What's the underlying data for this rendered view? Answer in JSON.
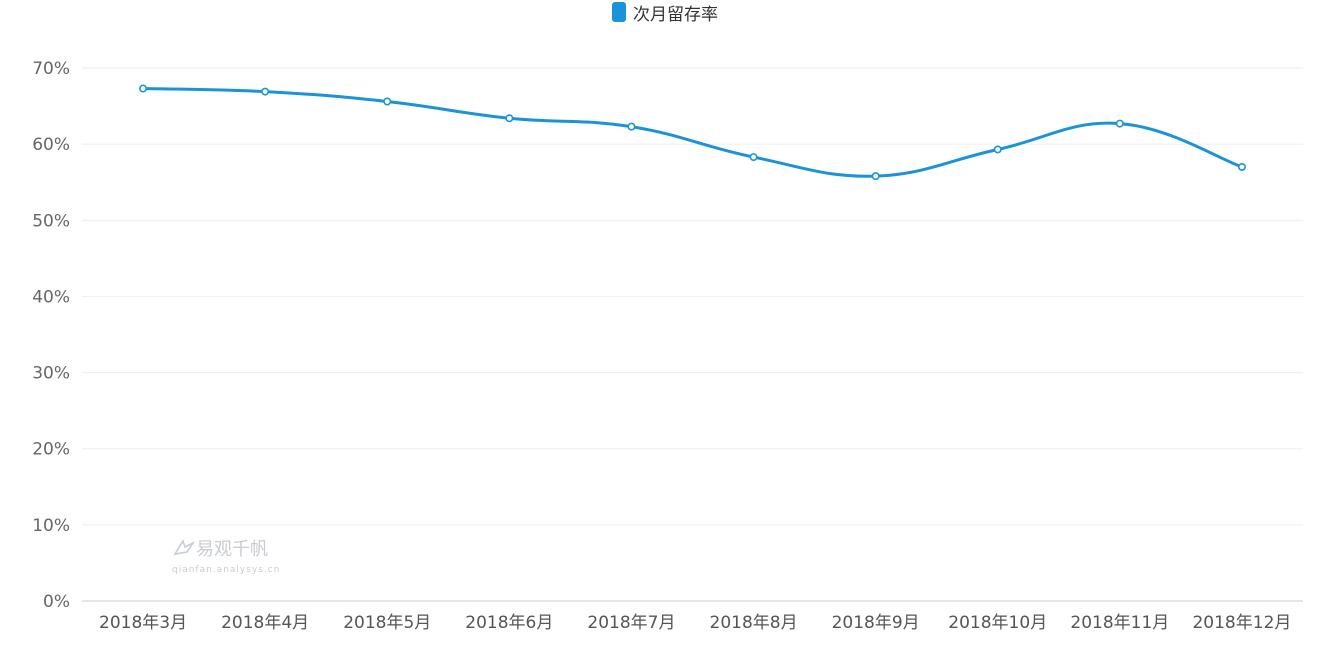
{
  "legend": {
    "label": "次月留存率",
    "color": "#1a93d8"
  },
  "watermark": {
    "brand": "易观千帆",
    "sub": "qianfan.analysys.cn"
  },
  "chart_data": {
    "type": "line",
    "categories": [
      "2018年3月",
      "2018年4月",
      "2018年5月",
      "2018年6月",
      "2018年7月",
      "2018年8月",
      "2018年9月",
      "2018年10月",
      "2018年11月",
      "2018年12月"
    ],
    "series": [
      {
        "name": "次月留存率",
        "values": [
          67.3,
          66.9,
          65.6,
          63.4,
          62.3,
          58.3,
          55.8,
          59.3,
          62.7,
          57.0
        ]
      }
    ],
    "ylim": [
      0,
      70
    ],
    "yticks": [
      0,
      10,
      20,
      30,
      40,
      50,
      60,
      70
    ],
    "y_tick_labels": [
      "0%",
      "10%",
      "20%",
      "30%",
      "40%",
      "50%",
      "60%",
      "70%"
    ],
    "smooth": true,
    "grid": true,
    "legend_position": "top-center"
  }
}
